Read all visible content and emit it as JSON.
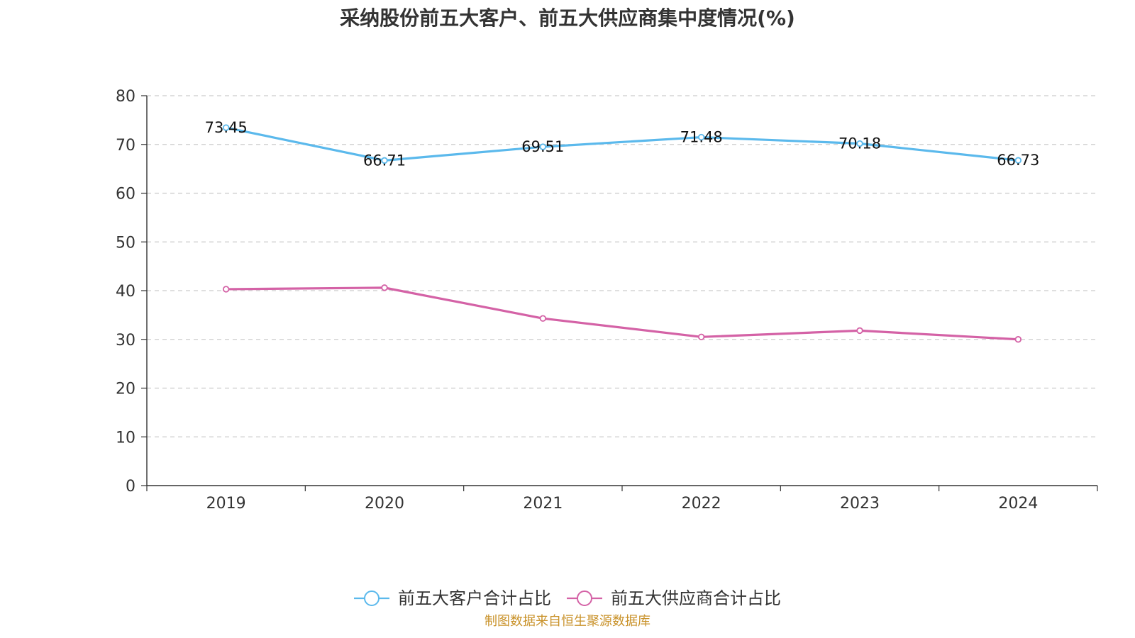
{
  "chart_data": {
    "type": "line",
    "title": "采纳股份前五大客户、前五大供应商集中度情况(%)",
    "categories": [
      "2019",
      "2020",
      "2021",
      "2022",
      "2023",
      "2024"
    ],
    "ylim": [
      0,
      80
    ],
    "yticks": [
      0,
      10,
      20,
      30,
      40,
      50,
      60,
      70,
      80
    ],
    "grid": true,
    "legend_position": "bottom",
    "series": [
      {
        "name": "前五大客户合计占比",
        "color": "#5bb9ec",
        "values": [
          73.45,
          66.71,
          69.51,
          71.48,
          70.18,
          66.73
        ],
        "labels": [
          "73.45",
          "66.71",
          "69.51",
          "71.48",
          "70.18",
          "66.73"
        ]
      },
      {
        "name": "前五大供应商合计占比",
        "color": "#d462a6",
        "values": [
          40.3,
          40.6,
          34.3,
          30.5,
          31.8,
          30.0
        ],
        "labels": []
      }
    ]
  },
  "footer": {
    "source": "制图数据来自恒生聚源数据库"
  }
}
